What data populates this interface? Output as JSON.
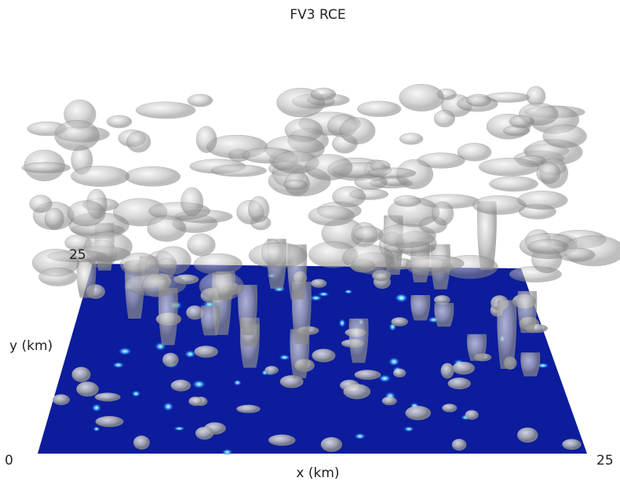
{
  "title": "FV3 RCE",
  "x_axis": {
    "label": "x (km)",
    "ticks": [
      0,
      25
    ]
  },
  "y_axis": {
    "label": "y (km)",
    "ticks": [
      25
    ]
  }
}
